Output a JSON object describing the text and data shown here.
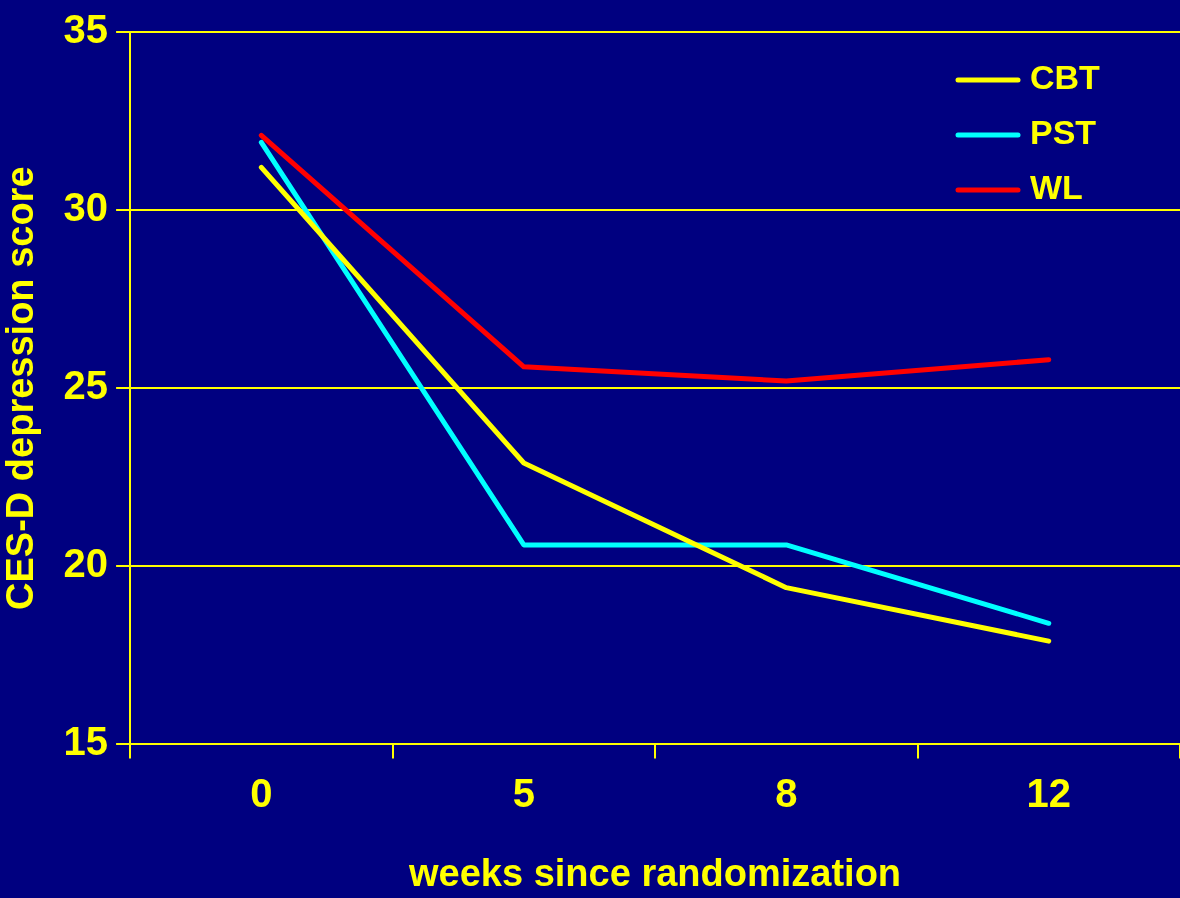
{
  "chart_data": {
    "type": "line",
    "xlabel": "weeks since randomization",
    "ylabel": "CES-D depression score",
    "categories": [
      "0",
      "5",
      "8",
      "12"
    ],
    "series": [
      {
        "name": "CBT",
        "color": "#ffff00",
        "values": [
          31.2,
          22.9,
          19.4,
          17.9
        ]
      },
      {
        "name": "PST",
        "color": "#00ffff",
        "values": [
          31.9,
          20.6,
          20.6,
          18.4
        ]
      },
      {
        "name": "WL",
        "color": "#ff0000",
        "values": [
          32.1,
          25.6,
          25.2,
          25.8
        ]
      }
    ],
    "ylim": [
      15,
      35
    ],
    "yticks": [
      15,
      20,
      25,
      30,
      35
    ],
    "grid": "y",
    "legend": "top right",
    "marker": "none",
    "line_style": "solid"
  }
}
